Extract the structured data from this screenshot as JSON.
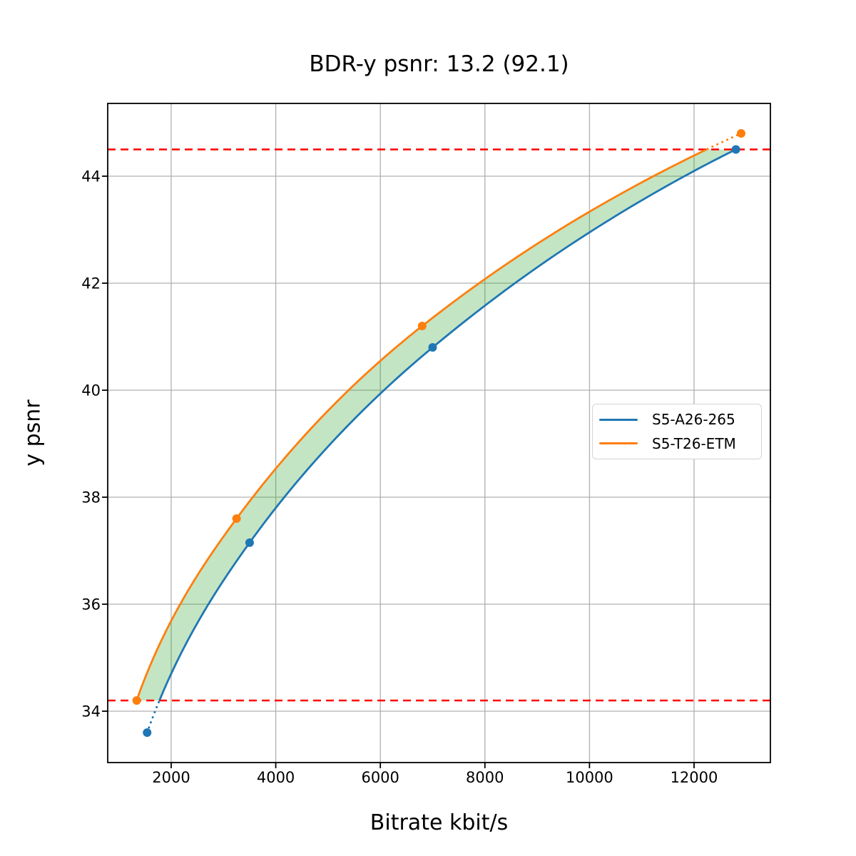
{
  "chart_data": {
    "type": "line",
    "title": "BDR-y psnr: 13.2 (92.1)",
    "xlabel": "Bitrate kbit/s",
    "ylabel": "y psnr",
    "xlim": [
      786,
      13460
    ],
    "ylim": [
      33.04,
      45.36
    ],
    "xticks": [
      2000,
      4000,
      6000,
      8000,
      10000,
      12000
    ],
    "yticks": [
      34,
      36,
      38,
      40,
      42,
      44
    ],
    "grid": true,
    "grid_color": "#b0b0b0",
    "legend_position": "center right",
    "series": [
      {
        "name": "S5-A26-265",
        "color": "#1f77b4",
        "marker": "circle",
        "line_style": "solid inside overlap, dotted outside",
        "x": [
          1540,
          3500,
          7000,
          12800
        ],
        "y": [
          33.6,
          37.15,
          40.8,
          44.5
        ]
      },
      {
        "name": "S5-T26-ETM",
        "color": "#ff7f0e",
        "marker": "circle",
        "line_style": "solid inside overlap, dotted outside",
        "x": [
          1340,
          3250,
          6800,
          12900
        ],
        "y": [
          34.2,
          37.6,
          41.2,
          44.8
        ]
      }
    ],
    "overlap_hlines": {
      "color": "#ff0000",
      "style": "dashed",
      "y_top": 44.5,
      "y_bottom": 34.2
    },
    "fill_between": {
      "color": "#2ca02c",
      "opacity": 0.28
    }
  }
}
